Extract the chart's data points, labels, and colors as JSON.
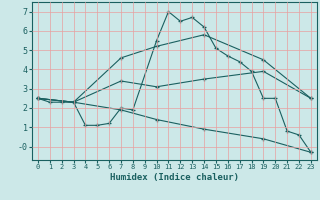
{
  "title": "",
  "xlabel": "Humidex (Indice chaleur)",
  "background_color": "#cce8e8",
  "grid_color": "#e8a0a0",
  "line_color": "#1a6060",
  "xlim": [
    -0.5,
    23.5
  ],
  "ylim": [
    -0.7,
    7.5
  ],
  "xticks": [
    0,
    1,
    2,
    3,
    4,
    5,
    6,
    7,
    8,
    9,
    10,
    11,
    12,
    13,
    14,
    15,
    16,
    17,
    18,
    19,
    20,
    21,
    22,
    23
  ],
  "yticks": [
    0,
    1,
    2,
    3,
    4,
    5,
    6,
    7
  ],
  "ytick_labels": [
    "-0",
    "1",
    "2",
    "3",
    "4",
    "5",
    "6",
    "7"
  ],
  "lines": [
    {
      "x": [
        0,
        1,
        2,
        3,
        4,
        5,
        6,
        7,
        8,
        10,
        11,
        12,
        13,
        14,
        15,
        16,
        17,
        18,
        19,
        20,
        21,
        22,
        23
      ],
      "y": [
        2.5,
        2.3,
        2.3,
        2.3,
        1.1,
        1.1,
        1.2,
        2.0,
        1.9,
        5.5,
        7.0,
        6.5,
        6.7,
        6.2,
        5.1,
        4.7,
        4.4,
        3.9,
        2.5,
        2.5,
        0.8,
        0.6,
        -0.3
      ]
    },
    {
      "x": [
        0,
        3,
        7,
        10,
        14,
        19,
        23
      ],
      "y": [
        2.5,
        2.3,
        3.4,
        3.1,
        3.5,
        3.9,
        2.5
      ]
    },
    {
      "x": [
        0,
        3,
        7,
        10,
        14,
        19,
        23
      ],
      "y": [
        2.5,
        2.3,
        1.9,
        1.4,
        0.9,
        0.4,
        -0.3
      ]
    },
    {
      "x": [
        0,
        3,
        7,
        10,
        14,
        19,
        23
      ],
      "y": [
        2.5,
        2.3,
        4.6,
        5.2,
        5.8,
        4.5,
        2.5
      ]
    }
  ]
}
